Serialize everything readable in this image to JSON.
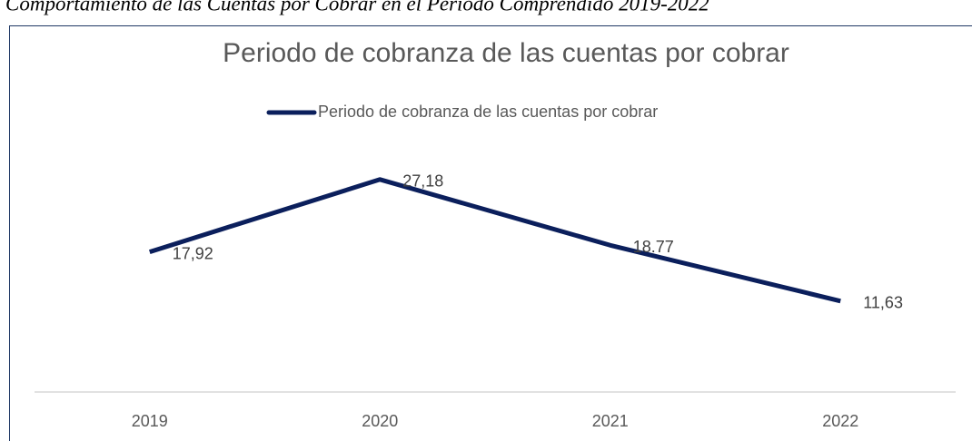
{
  "chart_data": {
    "type": "line",
    "caption": "Comportamiento de las Cuentas por Cobrar en el Periodo Comprendido 2019-2022",
    "title": "Periodo de cobranza de las cuentas por cobrar",
    "categories": [
      "2019",
      "2020",
      "2021",
      "2022"
    ],
    "series": [
      {
        "name": "Periodo de cobranza de las cuentas por cobrar",
        "color": "#0b1f5c",
        "values": [
          17.92,
          27.18,
          18.77,
          11.63
        ],
        "value_labels": [
          "17,92",
          "27,18",
          "18.77",
          "11,63"
        ]
      }
    ],
    "ylim": [
      0,
      30
    ],
    "legend": "top"
  }
}
